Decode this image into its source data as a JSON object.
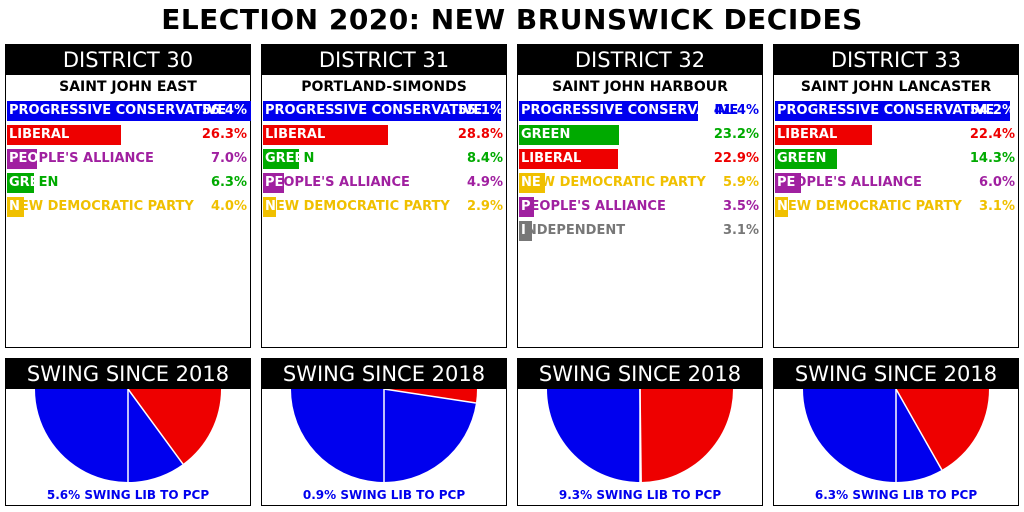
{
  "title": "ELECTION 2020: NEW BRUNSWICK DECIDES",
  "colors": {
    "PROGRESSIVE CONSERVATIVE": "#0000ee",
    "LIBERAL": "#ee0000",
    "PEOPLE'S ALLIANCE": "#a020a0",
    "GREEN": "#00aa00",
    "NEW DEMOCRATIC PARTY": "#f0c000",
    "INDEPENDENT": "#777777"
  },
  "chart_data": [
    {
      "type": "bar",
      "district_label": "DISTRICT 30",
      "district_name": "SAINT JOHN EAST",
      "categories": [
        "PROGRESSIVE CONSERVATIVE",
        "LIBERAL",
        "PEOPLE'S ALLIANCE",
        "GREEN",
        "NEW DEMOCRATIC PARTY"
      ],
      "values": [
        56.4,
        26.3,
        7.0,
        6.3,
        4.0
      ],
      "labels": [
        "56.4%",
        "26.3%",
        "7.0%",
        "6.3%",
        "4.0%"
      ],
      "swing": {
        "title": "SWING SINCE 2018",
        "type": "pie",
        "value": 5.6,
        "caption": "5.6% SWING LIB TO PCP"
      }
    },
    {
      "type": "bar",
      "district_label": "DISTRICT 31",
      "district_name": "PORTLAND-SIMONDS",
      "categories": [
        "PROGRESSIVE CONSERVATIVE",
        "LIBERAL",
        "GREEN",
        "PEOPLE'S ALLIANCE",
        "NEW DEMOCRATIC PARTY"
      ],
      "values": [
        55.1,
        28.8,
        8.4,
        4.9,
        2.9
      ],
      "labels": [
        "55.1%",
        "28.8%",
        "8.4%",
        "4.9%",
        "2.9%"
      ],
      "swing": {
        "title": "SWING SINCE 2018",
        "type": "pie",
        "value": 0.9,
        "caption": "0.9% SWING LIB TO PCP"
      }
    },
    {
      "type": "bar",
      "district_label": "DISTRICT 32",
      "district_name": "SAINT JOHN HARBOUR",
      "categories": [
        "PROGRESSIVE CONSERVATIVE",
        "GREEN",
        "LIBERAL",
        "NEW DEMOCRATIC PARTY",
        "PEOPLE'S ALLIANCE",
        "INDEPENDENT"
      ],
      "values": [
        41.4,
        23.2,
        22.9,
        5.9,
        3.5,
        3.1
      ],
      "labels": [
        "41.4%",
        "23.2%",
        "22.9%",
        "5.9%",
        "3.5%",
        "3.1%"
      ],
      "swing": {
        "title": "SWING SINCE 2018",
        "type": "pie",
        "value": 9.3,
        "caption": "9.3% SWING LIB TO PCP"
      }
    },
    {
      "type": "bar",
      "district_label": "DISTRICT 33",
      "district_name": "SAINT JOHN LANCASTER",
      "categories": [
        "PROGRESSIVE CONSERVATIVE",
        "LIBERAL",
        "GREEN",
        "PEOPLE'S ALLIANCE",
        "NEW DEMOCRATIC PARTY"
      ],
      "values": [
        54.2,
        22.4,
        14.3,
        6.0,
        3.1
      ],
      "labels": [
        "54.2%",
        "22.4%",
        "14.3%",
        "6.0%",
        "3.1%"
      ],
      "swing": {
        "title": "SWING SINCE 2018",
        "type": "pie",
        "value": 6.3,
        "caption": "6.3% SWING LIB TO PCP"
      }
    }
  ]
}
